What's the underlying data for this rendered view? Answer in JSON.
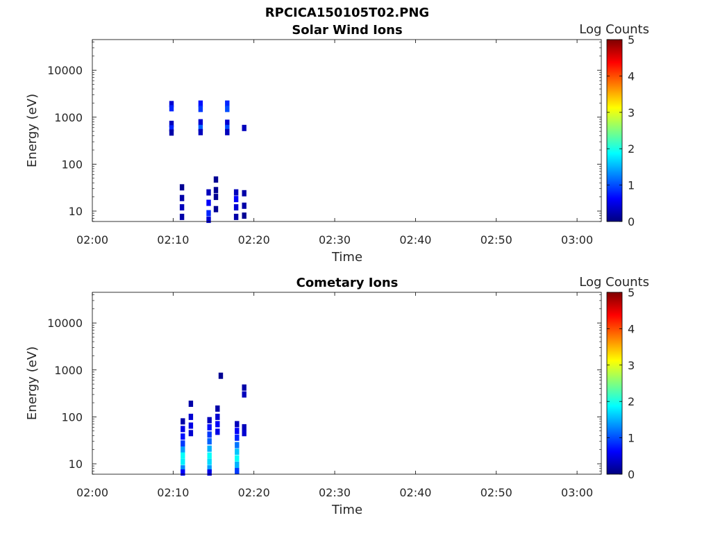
{
  "figure_title": "RPCICA150105T02.PNG",
  "colorbar_ticks": [
    "0",
    "1",
    "2",
    "3",
    "4",
    "5"
  ],
  "colorbar_colors": [
    "#00007f",
    "#0000ff",
    "#007fff",
    "#00ffff",
    "#7fff7f",
    "#ffff00",
    "#ff7f00",
    "#ff0000",
    "#7f0000"
  ],
  "chart_data": [
    {
      "type": "heatmap",
      "title": "Solar Wind Ions",
      "xlabel": "Time",
      "ylabel": "Energy (eV)",
      "x_range": [
        "02:00",
        "03:03"
      ],
      "x_ticks": [
        "02:00",
        "02:10",
        "02:20",
        "02:30",
        "02:40",
        "02:50",
        "03:00"
      ],
      "y_scale": "log",
      "y_range": [
        6,
        45000
      ],
      "y_ticks": [
        "10",
        "100",
        "1000",
        "10000"
      ],
      "colorbar_label": "Log Counts",
      "colorbar_range": [
        0,
        5
      ],
      "cells": [
        {
          "t": "02:09.8",
          "e": 1900,
          "v": 0.4
        },
        {
          "t": "02:09.8",
          "e": 1550,
          "v": 0.8
        },
        {
          "t": "02:09.8",
          "e": 720,
          "v": 0.3
        },
        {
          "t": "02:09.8",
          "e": 580,
          "v": 0.8
        },
        {
          "t": "02:09.8",
          "e": 470,
          "v": 0.2
        },
        {
          "t": "02:13.4",
          "e": 1950,
          "v": 0.7
        },
        {
          "t": "02:13.4",
          "e": 1500,
          "v": 0.9
        },
        {
          "t": "02:13.4",
          "e": 780,
          "v": 0.4
        },
        {
          "t": "02:13.4",
          "e": 590,
          "v": 1.1
        },
        {
          "t": "02:13.4",
          "e": 480,
          "v": 0.3
        },
        {
          "t": "02:16.7",
          "e": 1950,
          "v": 0.8
        },
        {
          "t": "02:16.7",
          "e": 1500,
          "v": 1.0
        },
        {
          "t": "02:16.7",
          "e": 760,
          "v": 0.4
        },
        {
          "t": "02:16.7",
          "e": 590,
          "v": 1.0
        },
        {
          "t": "02:16.7",
          "e": 480,
          "v": 0.3
        },
        {
          "t": "02:18.8",
          "e": 590,
          "v": 0.3
        },
        {
          "t": "02:11.1",
          "e": 32,
          "v": 0.1
        },
        {
          "t": "02:11.1",
          "e": 19,
          "v": 0.2
        },
        {
          "t": "02:11.1",
          "e": 12,
          "v": 0.3
        },
        {
          "t": "02:11.1",
          "e": 7.5,
          "v": 0.2
        },
        {
          "t": "02:14.4",
          "e": 25,
          "v": 0.3
        },
        {
          "t": "02:14.4",
          "e": 15,
          "v": 0.6
        },
        {
          "t": "02:14.4",
          "e": 9,
          "v": 0.8
        },
        {
          "t": "02:14.4",
          "e": 6.5,
          "v": 0.4
        },
        {
          "t": "02:15.3",
          "e": 47,
          "v": 0.1
        },
        {
          "t": "02:15.3",
          "e": 28,
          "v": 0.1
        },
        {
          "t": "02:15.3",
          "e": 20,
          "v": 0.1
        },
        {
          "t": "02:15.3",
          "e": 11,
          "v": 0.1
        },
        {
          "t": "02:17.8",
          "e": 25,
          "v": 0.3
        },
        {
          "t": "02:17.8",
          "e": 18,
          "v": 0.6
        },
        {
          "t": "02:17.8",
          "e": 12,
          "v": 0.4
        },
        {
          "t": "02:17.8",
          "e": 7.5,
          "v": 0.2
        },
        {
          "t": "02:18.8",
          "e": 24,
          "v": 0.2
        },
        {
          "t": "02:18.8",
          "e": 13,
          "v": 0.2
        },
        {
          "t": "02:18.8",
          "e": 8,
          "v": 0.1
        }
      ]
    },
    {
      "type": "heatmap",
      "title": "Cometary Ions",
      "xlabel": "Time",
      "ylabel": "Energy (eV)",
      "x_range": [
        "02:00",
        "03:03"
      ],
      "x_ticks": [
        "02:00",
        "02:10",
        "02:20",
        "02:30",
        "02:40",
        "02:50",
        "03:00"
      ],
      "y_scale": "log",
      "y_range": [
        6,
        45000
      ],
      "y_ticks": [
        "10",
        "100",
        "1000",
        "10000"
      ],
      "colorbar_label": "Log Counts",
      "colorbar_range": [
        0,
        5
      ],
      "cells": [
        {
          "t": "02:11.2",
          "e": 80,
          "v": 0.2
        },
        {
          "t": "02:11.2",
          "e": 55,
          "v": 0.5
        },
        {
          "t": "02:11.2",
          "e": 38,
          "v": 0.7
        },
        {
          "t": "02:11.2",
          "e": 27,
          "v": 0.9
        },
        {
          "t": "02:11.2",
          "e": 20,
          "v": 1.4
        },
        {
          "t": "02:11.2",
          "e": 15,
          "v": 1.9
        },
        {
          "t": "02:11.2",
          "e": 11,
          "v": 1.8
        },
        {
          "t": "02:11.2",
          "e": 8,
          "v": 1.3
        },
        {
          "t": "02:11.2",
          "e": 6.5,
          "v": 0.6
        },
        {
          "t": "02:12.2",
          "e": 190,
          "v": 0.2
        },
        {
          "t": "02:12.2",
          "e": 100,
          "v": 0.4
        },
        {
          "t": "02:12.2",
          "e": 65,
          "v": 0.5
        },
        {
          "t": "02:12.2",
          "e": 45,
          "v": 0.4
        },
        {
          "t": "02:14.5",
          "e": 85,
          "v": 0.3
        },
        {
          "t": "02:14.5",
          "e": 60,
          "v": 0.7
        },
        {
          "t": "02:14.5",
          "e": 42,
          "v": 0.9
        },
        {
          "t": "02:14.5",
          "e": 30,
          "v": 1.1
        },
        {
          "t": "02:14.5",
          "e": 21,
          "v": 1.5
        },
        {
          "t": "02:14.5",
          "e": 15,
          "v": 1.9
        },
        {
          "t": "02:14.5",
          "e": 11,
          "v": 1.7
        },
        {
          "t": "02:14.5",
          "e": 8,
          "v": 1.4
        },
        {
          "t": "02:14.5",
          "e": 6.5,
          "v": 0.5
        },
        {
          "t": "02:15.5",
          "e": 150,
          "v": 0.2
        },
        {
          "t": "02:15.5",
          "e": 100,
          "v": 0.4
        },
        {
          "t": "02:15.5",
          "e": 70,
          "v": 0.6
        },
        {
          "t": "02:15.5",
          "e": 48,
          "v": 0.5
        },
        {
          "t": "02:15.9",
          "e": 750,
          "v": 0.1
        },
        {
          "t": "02:17.9",
          "e": 70,
          "v": 0.3
        },
        {
          "t": "02:17.9",
          "e": 50,
          "v": 0.6
        },
        {
          "t": "02:17.9",
          "e": 36,
          "v": 0.8
        },
        {
          "t": "02:17.9",
          "e": 25,
          "v": 1.2
        },
        {
          "t": "02:17.9",
          "e": 18,
          "v": 1.6
        },
        {
          "t": "02:17.9",
          "e": 13,
          "v": 1.9
        },
        {
          "t": "02:17.9",
          "e": 9.5,
          "v": 1.5
        },
        {
          "t": "02:17.9",
          "e": 7,
          "v": 0.9
        },
        {
          "t": "02:18.8",
          "e": 60,
          "v": 0.3
        },
        {
          "t": "02:18.8",
          "e": 45,
          "v": 0.4
        },
        {
          "t": "02:18.8",
          "e": 420,
          "v": 0.2
        },
        {
          "t": "02:18.8",
          "e": 300,
          "v": 0.3
        }
      ]
    }
  ]
}
